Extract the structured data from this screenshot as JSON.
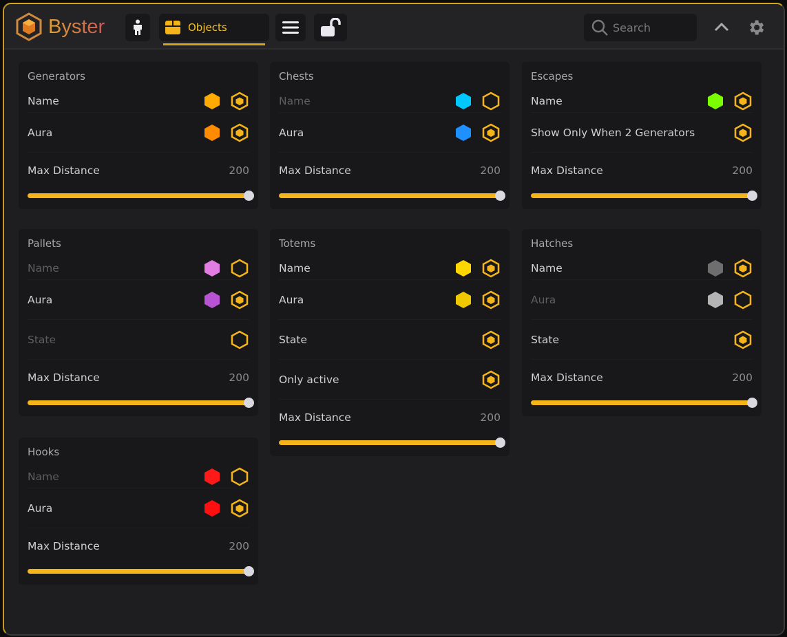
{
  "app": {
    "title": "Byster"
  },
  "toolbar": {
    "tab_objects": "Objects",
    "search_placeholder": "Search",
    "accent": "#f5b41a"
  },
  "cards": [
    {
      "title": "Generators",
      "rows": [
        {
          "label": "Name",
          "color": "#ffaa00",
          "enabled": true
        },
        {
          "label": "Aura",
          "color": "#ff8c00",
          "enabled": true
        }
      ],
      "max_distance": {
        "label": "Max Distance",
        "value": 200,
        "fraction": 1
      }
    },
    {
      "title": "Chests",
      "rows": [
        {
          "label": "Name",
          "color": "#00c8ff",
          "enabled": false
        },
        {
          "label": "Aura",
          "color": "#1e90ff",
          "enabled": true
        }
      ],
      "max_distance": {
        "label": "Max Distance",
        "value": 200,
        "fraction": 1
      }
    },
    {
      "title": "Escapes",
      "rows": [
        {
          "label": "Name",
          "color": "#7cfc00",
          "enabled": true
        },
        {
          "label": "Show Only When 2 Generators",
          "enabled": true
        }
      ],
      "max_distance": {
        "label": "Max Distance",
        "value": 200,
        "fraction": 1
      }
    },
    {
      "title": "Pallets",
      "rows": [
        {
          "label": "Name",
          "color": "#e37ce3",
          "enabled": false
        },
        {
          "label": "Aura",
          "color": "#b854d4",
          "enabled": true
        },
        {
          "label": "State",
          "enabled": false
        }
      ],
      "max_distance": {
        "label": "Max Distance",
        "value": 200,
        "fraction": 1
      }
    },
    {
      "title": "Totems",
      "rows": [
        {
          "label": "Name",
          "color": "#ffd700",
          "enabled": true
        },
        {
          "label": "Aura",
          "color": "#f0c800",
          "enabled": true
        },
        {
          "label": "State",
          "enabled": true
        },
        {
          "label": "Only active",
          "enabled": true
        }
      ],
      "max_distance": {
        "label": "Max Distance",
        "value": 200,
        "fraction": 1
      }
    },
    {
      "title": "Hatches",
      "rows": [
        {
          "label": "Name",
          "color": "#6e6e6e",
          "enabled": true
        },
        {
          "label": "Aura",
          "color": "#b4b4b4",
          "enabled": false
        },
        {
          "label": "State",
          "enabled": true
        }
      ],
      "max_distance": {
        "label": "Max Distance",
        "value": 200,
        "fraction": 1
      }
    },
    {
      "title": "Hooks",
      "rows": [
        {
          "label": "Name",
          "color": "#ff1a1a",
          "enabled": false
        },
        {
          "label": "Aura",
          "color": "#ff0f0f",
          "enabled": true
        }
      ],
      "max_distance": {
        "label": "Max Distance",
        "value": 200,
        "fraction": 1
      }
    }
  ]
}
